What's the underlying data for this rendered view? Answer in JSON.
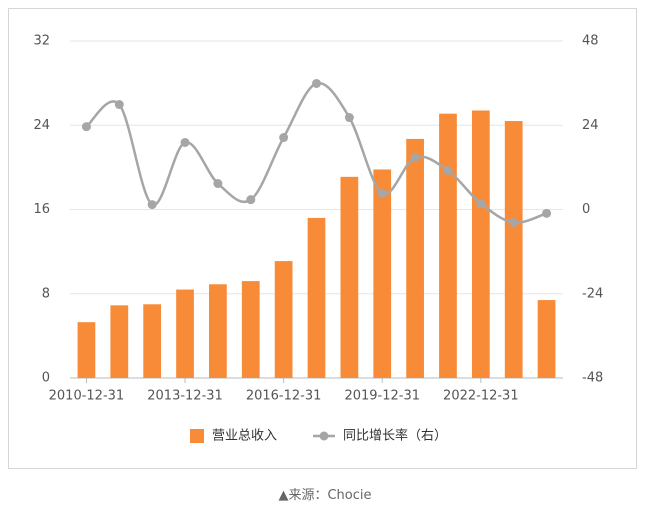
{
  "chart_data": {
    "type": "bar-line",
    "categories": [
      "2010-12-31",
      null,
      null,
      "2013-12-31",
      null,
      null,
      "2016-12-31",
      null,
      null,
      "2019-12-31",
      null,
      null,
      "2022-12-31",
      null,
      null
    ],
    "series": [
      {
        "name": "营业总收入",
        "type": "bar",
        "color": "#f78b38",
        "values": [
          5.3,
          6.9,
          7.0,
          8.4,
          8.9,
          9.2,
          11.1,
          15.2,
          19.1,
          19.8,
          22.7,
          25.1,
          25.4,
          24.4,
          7.4
        ]
      },
      {
        "name": "同比增长率（右）",
        "type": "line",
        "axis": "y2",
        "color": "#a6a6a6",
        "values": [
          23.6,
          29.9,
          1.4,
          19.1,
          7.4,
          2.8,
          20.5,
          35.9,
          26.2,
          4.6,
          14.8,
          11.1,
          1.7,
          -3.7,
          -1.1
        ]
      }
    ],
    "ylim": [
      0,
      32
    ],
    "yticks": [
      0,
      8,
      16,
      24,
      32
    ],
    "y2lim": [
      -48,
      48
    ],
    "y2ticks": [
      -48,
      -24,
      0,
      24,
      48
    ],
    "grid": true,
    "legend": "bottom"
  },
  "footer": "▲来源：Chocie"
}
